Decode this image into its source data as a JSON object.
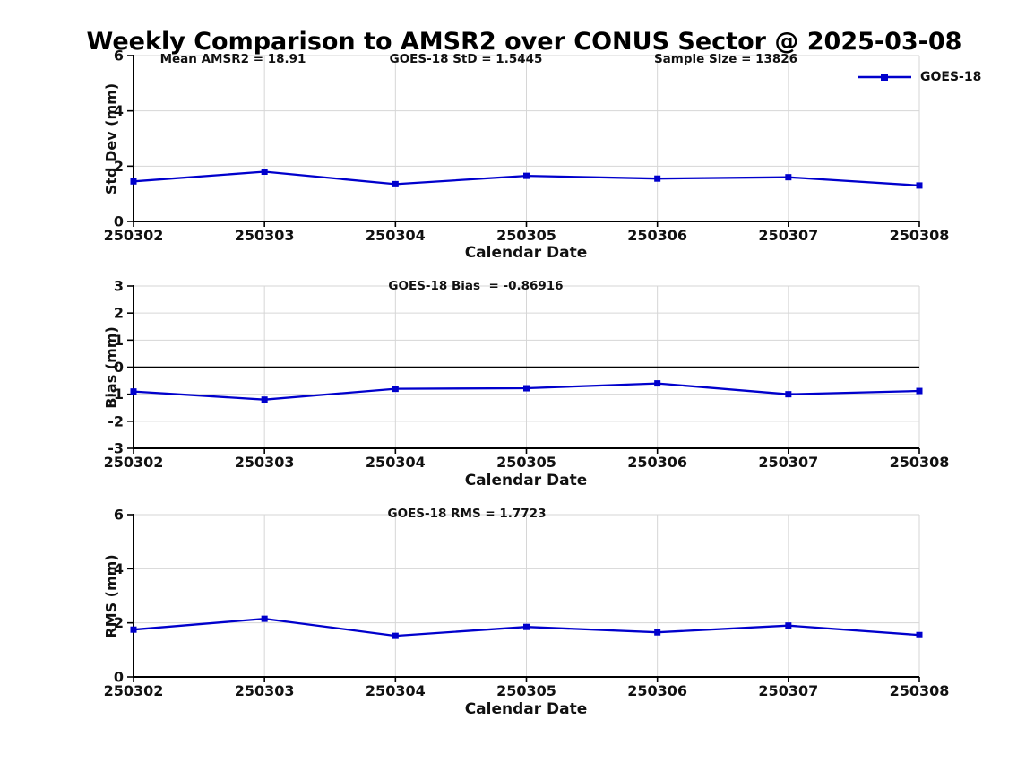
{
  "title": "Weekly Comparison to AMSR2 over CONUS Sector @ 2025-03-08",
  "legend": {
    "label": "GOES-18"
  },
  "colors": {
    "line": "#0000cc",
    "grid": "#d6d6d6",
    "axis": "#000000",
    "text": "#111111",
    "background": "#ffffff"
  },
  "chart_data": [
    {
      "type": "line",
      "name": "std-dev-panel",
      "ylabel": "Std Dev (mm)",
      "xlabel": "Calendar Date",
      "categories": [
        "250302",
        "250303",
        "250304",
        "250305",
        "250306",
        "250307",
        "250308"
      ],
      "series": [
        {
          "name": "GOES-18",
          "values": [
            1.45,
            1.8,
            1.35,
            1.65,
            1.55,
            1.6,
            1.3
          ]
        }
      ],
      "ylim": [
        0,
        6
      ],
      "yticks": [
        0,
        2,
        4,
        6
      ],
      "grid": true,
      "legend_position": "top-right",
      "annotations": [
        "Mean AMSR2 = 18.91",
        "GOES-18 StD = 1.5445",
        "Sample Size = 13826"
      ]
    },
    {
      "type": "line",
      "name": "bias-panel",
      "ylabel": "Bias (mm)",
      "xlabel": "Calendar Date",
      "categories": [
        "250302",
        "250303",
        "250304",
        "250305",
        "250306",
        "250307",
        "250308"
      ],
      "series": [
        {
          "name": "GOES-18",
          "values": [
            -0.9,
            -1.2,
            -0.8,
            -0.78,
            -0.6,
            -1.0,
            -0.88
          ]
        }
      ],
      "ylim": [
        -3,
        3
      ],
      "yticks": [
        -3,
        -2,
        -1,
        0,
        1,
        2,
        3
      ],
      "zero_line": true,
      "grid": true,
      "annotations": [
        "GOES-18 Bias  = -0.86916"
      ]
    },
    {
      "type": "line",
      "name": "rms-panel",
      "ylabel": "RMS (mm)",
      "xlabel": "Calendar Date",
      "categories": [
        "250302",
        "250303",
        "250304",
        "250305",
        "250306",
        "250307",
        "250308"
      ],
      "series": [
        {
          "name": "GOES-18",
          "values": [
            1.75,
            2.15,
            1.52,
            1.85,
            1.65,
            1.9,
            1.55
          ]
        }
      ],
      "ylim": [
        0,
        6
      ],
      "yticks": [
        0,
        2,
        4,
        6
      ],
      "grid": true,
      "annotations": [
        "GOES-18 RMS = 1.7723"
      ]
    }
  ]
}
